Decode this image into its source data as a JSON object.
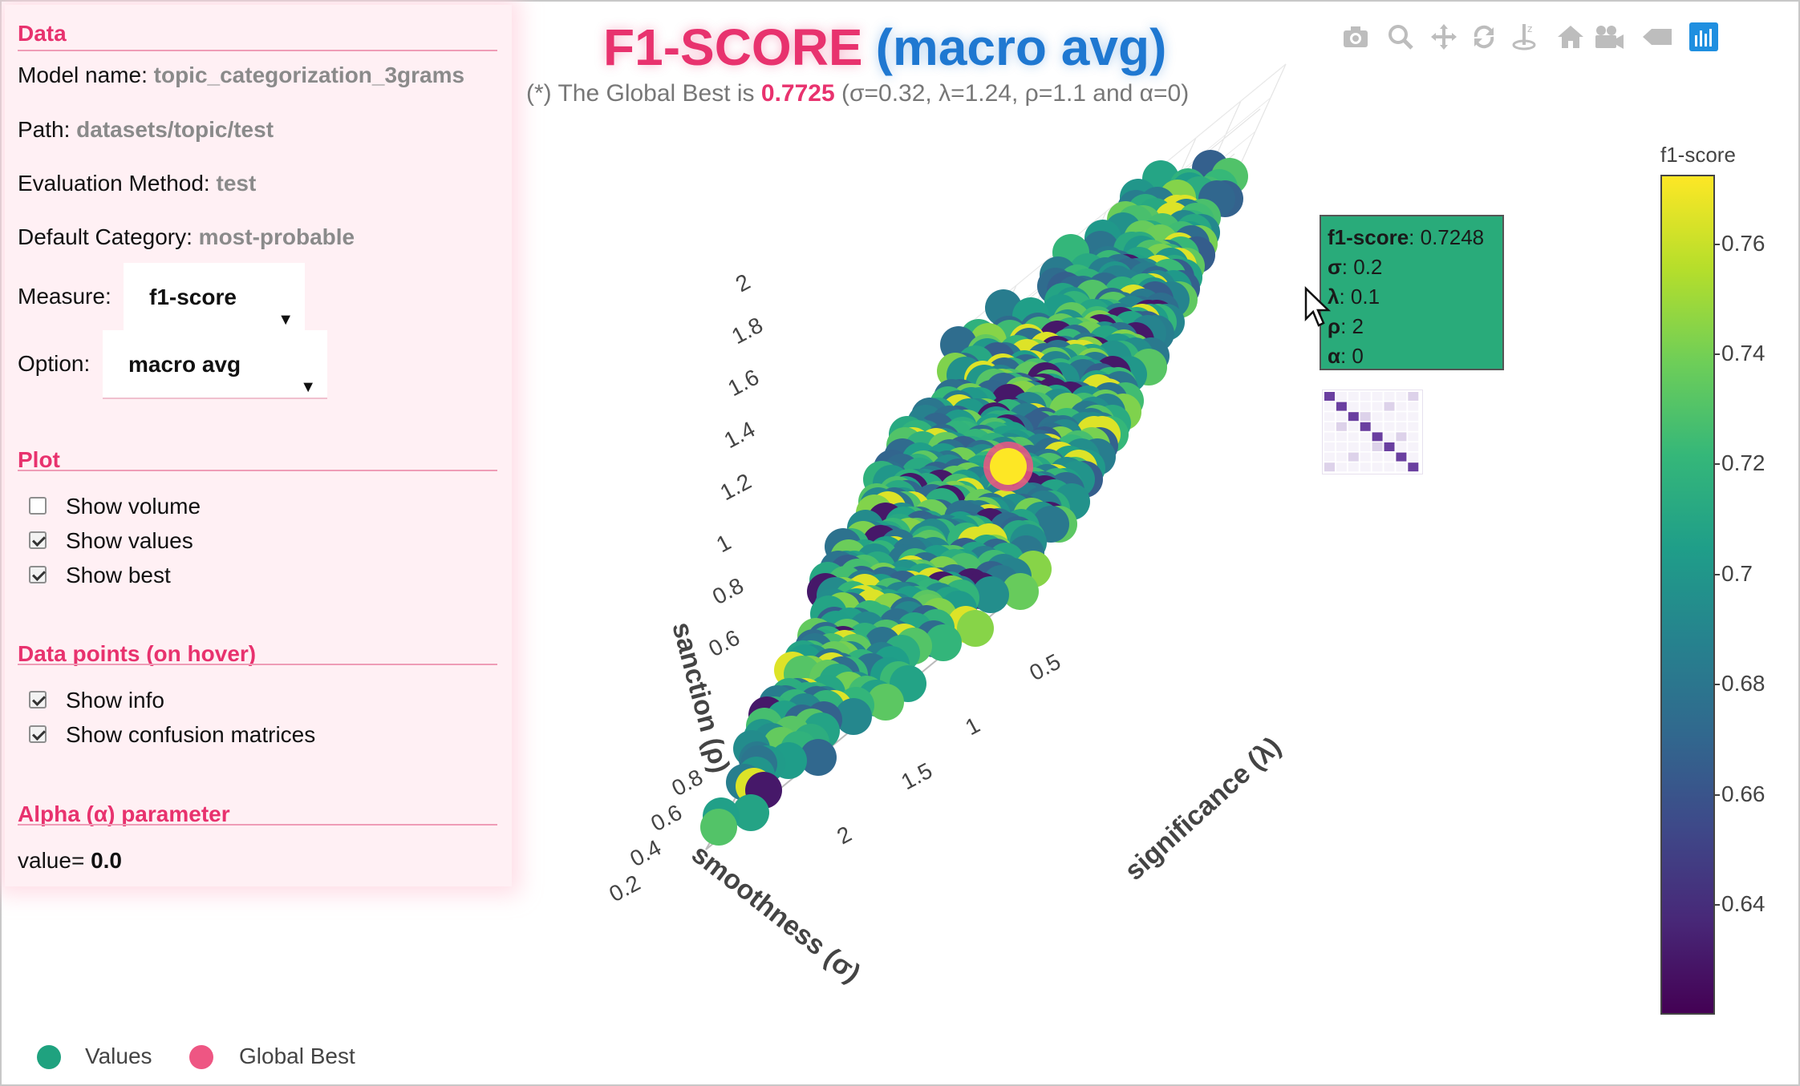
{
  "panel": {
    "data_title": "Data",
    "model_label": "Model name: ",
    "model_value": "topic_categorization_3grams",
    "path_label": "Path: ",
    "path_value": "datasets/topic/test",
    "eval_label": "Evaluation Method: ",
    "eval_value": "test",
    "default_cat_label": "Default Category: ",
    "default_cat_value": "most-probable",
    "measure_label": "Measure:",
    "measure_value": "f1-score",
    "option_label": "Option:",
    "option_value": "macro avg",
    "plot_title": "Plot",
    "show_volume": "Show volume",
    "show_values": "Show values",
    "show_best": "Show best",
    "points_title": "Data points (on hover)",
    "show_info": "Show info",
    "show_confusion": "Show confusion matrices",
    "alpha_title": "Alpha (α) parameter",
    "alpha_label": "value= ",
    "alpha_value": "0.0",
    "checks": {
      "show_volume": false,
      "show_values": true,
      "show_best": true,
      "show_info": true,
      "show_confusion": true
    }
  },
  "header": {
    "title_main": "F1-SCORE",
    "title_sub": "(macro avg)",
    "subtitle_prefix": "(*) The Global Best is ",
    "subtitle_best": "0.7725",
    "subtitle_params": " (σ=0.32, λ=1.24, ρ=1.1 and α=0)"
  },
  "toolbar": {
    "icons": [
      "camera-icon",
      "zoom-icon",
      "pan-icon",
      "orbit-rotation-icon",
      "turntable-rotation-icon",
      "reset-camera-icon",
      "camera-last-save-icon",
      "toggle-hover-icon",
      "plotly-logo-icon"
    ]
  },
  "tooltip": {
    "score_key": "f1-score",
    "score_val": ": 0.7248",
    "sigma_key": "σ",
    "sigma_val": ": 0.2",
    "lambda_key": "λ",
    "lambda_val": ": 0.1",
    "rho_key": "ρ",
    "rho_val": ": 2",
    "alpha_key": "α",
    "alpha_val": ": 0"
  },
  "colorbar": {
    "title": "f1-score",
    "ticks": [
      "0.76",
      "0.74",
      "0.72",
      "0.7",
      "0.68",
      "0.66",
      "0.64"
    ]
  },
  "legend": {
    "values_label": "Values",
    "best_label": "Global Best",
    "values_color": "#1fa27f",
    "best_color": "#ee5683"
  },
  "chart_data": {
    "type": "scatter3d",
    "axes": {
      "x_label": "smoothness (σ)",
      "y_label": "significance (λ)",
      "z_label": "sanction (ρ)",
      "x_ticks": [
        "0.2",
        "0.4",
        "0.6",
        "0.8"
      ],
      "y_ticks": [
        "0.5",
        "1",
        "1.5",
        "2"
      ],
      "z_ticks": [
        "0.6",
        "0.8",
        "1",
        "1.2",
        "1.4",
        "1.6",
        "1.8",
        "2"
      ]
    },
    "colorscale": "viridis",
    "color_range": [
      0.62,
      0.7725
    ],
    "global_best": {
      "f1": 0.7725,
      "sigma": 0.32,
      "lambda": 1.24,
      "rho": 1.1,
      "alpha": 0
    },
    "hovered_point": {
      "f1": 0.7248,
      "sigma": 0.2,
      "lambda": 0.1,
      "rho": 2,
      "alpha": 0
    }
  }
}
